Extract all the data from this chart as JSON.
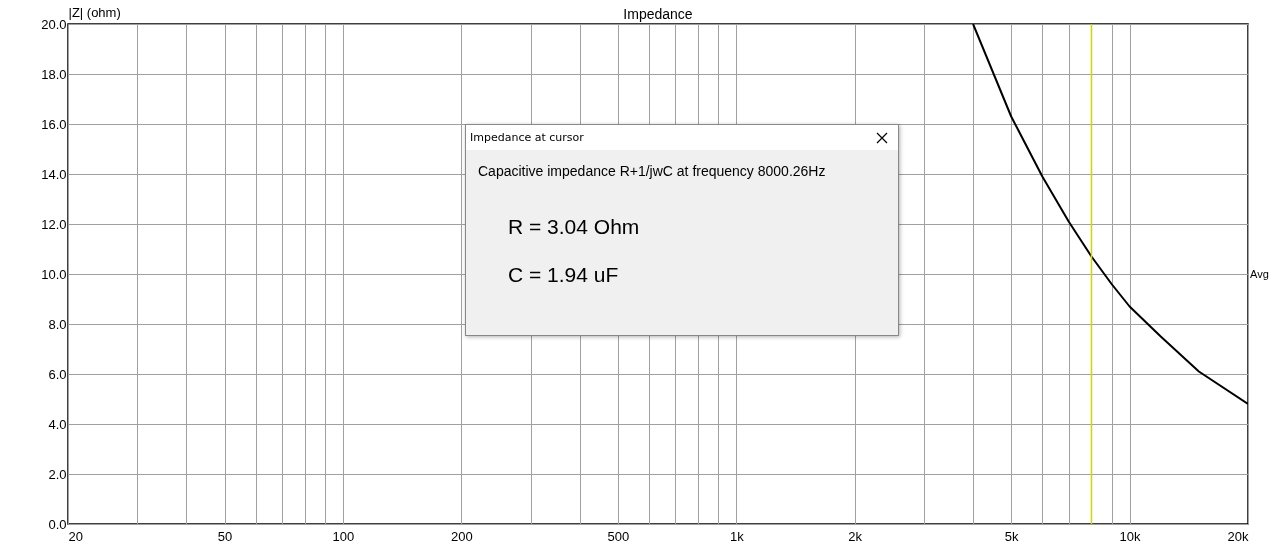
{
  "chart_data": {
    "type": "line",
    "title": "Impedance",
    "ylabel": "|Z| (ohm)",
    "x": [
      4000,
      5000,
      6000,
      7000,
      8000,
      9000,
      10000,
      12000,
      15000,
      20000
    ],
    "series": [
      {
        "color": "#000000",
        "values": [
          20.0,
          16.3,
          13.9,
          12.1,
          10.7,
          9.6,
          8.7,
          7.5,
          6.1,
          4.8
        ]
      }
    ],
    "log": "x",
    "xlim": [
      20,
      20000
    ],
    "xticks": [
      20,
      {
        "value": 30,
        "label": null
      },
      {
        "value": 40,
        "label": null
      },
      50,
      {
        "value": 60,
        "label": null
      },
      {
        "value": 70,
        "label": null
      },
      {
        "value": 80,
        "label": null
      },
      {
        "value": 90,
        "label": null
      },
      100,
      {
        "value": 200,
        "label": "200"
      },
      {
        "value": 300,
        "label": null
      },
      {
        "value": 400,
        "label": null
      },
      500,
      {
        "value": 600,
        "label": null
      },
      {
        "value": 700,
        "label": null
      },
      {
        "value": 800,
        "label": null
      },
      {
        "value": 900,
        "label": null
      },
      {
        "value": 1000,
        "label": "1k"
      },
      {
        "value": 2000,
        "label": "2k"
      },
      {
        "value": 3000,
        "label": null
      },
      {
        "value": 4000,
        "label": null
      },
      {
        "value": 5000,
        "label": "5k"
      },
      {
        "value": 6000,
        "label": null
      },
      {
        "value": 7000,
        "label": null
      },
      {
        "value": 8000,
        "label": null
      },
      {
        "value": 9000,
        "label": null
      },
      {
        "value": 10000,
        "label": "10k"
      },
      {
        "value": 20000,
        "label": "20k"
      }
    ],
    "ylim": [
      0,
      20
    ],
    "yticks": [
      {
        "value": 0,
        "label": "0.0"
      },
      {
        "value": 2,
        "label": "2.0"
      },
      {
        "value": 4,
        "label": "4.0"
      },
      {
        "value": 6,
        "label": "6.0"
      },
      {
        "value": 8,
        "label": "8.0"
      },
      {
        "value": 10,
        "label": "10.0"
      },
      {
        "value": 12,
        "label": "12.0"
      },
      {
        "value": 14,
        "label": "14.0"
      },
      {
        "value": 16,
        "label": "16.0"
      },
      {
        "value": 18,
        "label": "18.0"
      },
      {
        "value": 20,
        "label": "20.0"
      }
    ],
    "grid": true,
    "marker": "none",
    "line_style": "solid",
    "ref_lines": [
      {
        "axis": "x",
        "value": 8000,
        "color": "#d4d400"
      }
    ],
    "annotations": [
      "Impedance at cursor",
      "Capacitive impedance R+1/jwC at frequency 8000.26Hz",
      "R = 3.04 Ohm",
      "C = 1.94 uF",
      "Avg"
    ]
  }
}
